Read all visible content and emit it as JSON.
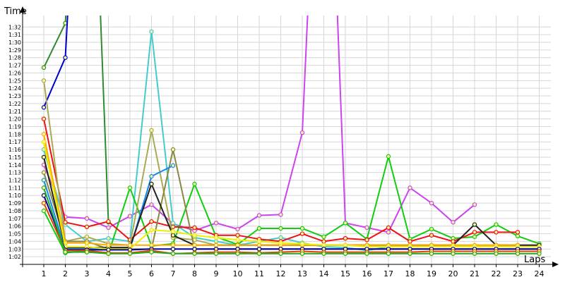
{
  "chart_data": {
    "type": "line",
    "title": "",
    "xlabel": "Laps",
    "ylabel": "Time",
    "x": [
      1,
      2,
      3,
      4,
      5,
      6,
      7,
      8,
      9,
      10,
      11,
      12,
      13,
      14,
      15,
      16,
      17,
      18,
      19,
      20,
      21,
      22,
      23,
      24
    ],
    "ytick_labels": [
      "1:02",
      "1:03",
      "1:04",
      "1:05",
      "1:06",
      "1:07",
      "1:08",
      "1:09",
      "1:10",
      "1:11",
      "1:12",
      "1:13",
      "1:14",
      "1:15",
      "1:16",
      "1:17",
      "1:18",
      "1:19",
      "1:20",
      "1:21",
      "1:22",
      "1:23",
      "1:24",
      "1:25",
      "1:26",
      "1:27",
      "1:28",
      "1:29",
      "1:30",
      "1:31",
      "1:32"
    ],
    "ylim_seconds": [
      61,
      93.5
    ],
    "grid": true,
    "legend": "none",
    "series": [
      {
        "color": "#2e8b2e",
        "values": [
          86.7,
          92.5,
          140,
          66.5,
          null,
          null,
          null,
          null,
          null,
          null,
          null,
          null,
          null,
          null,
          null,
          null,
          null,
          null,
          null,
          null,
          null,
          null,
          null,
          null
        ]
      },
      {
        "color": "#0000cc",
        "values": [
          81.5,
          88,
          140,
          null,
          null,
          null,
          null,
          null,
          null,
          null,
          null,
          null,
          null,
          null,
          null,
          null,
          null,
          null,
          null,
          null,
          null,
          null,
          null,
          null
        ]
      },
      {
        "color": "#cc44ee",
        "values": [
          74,
          67.2,
          67,
          65.8,
          67.3,
          68.8,
          66.3,
          65.4,
          66.4,
          65.6,
          67.4,
          67.5,
          78.2,
          140,
          66.4,
          65.8,
          65.2,
          71,
          69,
          66.5,
          68.8,
          null,
          null,
          null
        ]
      },
      {
        "color": "#44cccc",
        "values": [
          76,
          66.2,
          64,
          64.4,
          64,
          91.4,
          66.4,
          64.5,
          64,
          63.5,
          64,
          64.5,
          63.8,
          63.3,
          63.2,
          62.8,
          63.3,
          63.3,
          63.3,
          63.3,
          63.3,
          63.3,
          63.3,
          null
        ]
      },
      {
        "color": "#11cc11",
        "values": [
          68,
          62.5,
          62.8,
          62.4,
          71,
          63.4,
          63.7,
          71.5,
          64.6,
          63.6,
          65.7,
          65.7,
          65.7,
          64.6,
          66.4,
          64.3,
          75.1,
          64.3,
          65.6,
          64.4,
          64.6,
          66.2,
          64.7,
          63.7
        ]
      },
      {
        "color": "#ee1111",
        "values": [
          80,
          66.5,
          65.9,
          66.6,
          64.2,
          66.6,
          65.9,
          65.8,
          64.8,
          64.8,
          64.3,
          64,
          65,
          64,
          64.4,
          64.2,
          65.8,
          64,
          64.8,
          64,
          65.2,
          65.2,
          65.2,
          null
        ]
      },
      {
        "color": "#aaaa55",
        "values": [
          85,
          64,
          64.6,
          63.7,
          63.5,
          78.5,
          64.5,
          64.2,
          63.5,
          63.5,
          63.5,
          63.5,
          63.5,
          63.5,
          63.5,
          63.5,
          63.5,
          63.5,
          63.5,
          63.5,
          63.5,
          63.5,
          63.5,
          63.5
        ]
      },
      {
        "color": "#888844",
        "values": [
          73,
          64,
          64,
          63,
          63,
          63,
          76,
          63,
          63,
          63,
          63,
          63,
          63,
          63,
          63,
          63,
          63,
          63,
          63,
          63,
          63,
          63,
          63,
          63
        ]
      },
      {
        "color": "#1188ee",
        "values": [
          72,
          63,
          63,
          63,
          63,
          72.5,
          73.9,
          null,
          null,
          null,
          null,
          null,
          null,
          null,
          null,
          null,
          null,
          null,
          null,
          null,
          null,
          null,
          null,
          null
        ]
      },
      {
        "color": "#222222",
        "values": [
          75,
          63.2,
          63.2,
          63.2,
          63.2,
          71.5,
          64.8,
          63.5,
          63.5,
          63.5,
          63.5,
          63.5,
          63.5,
          63.5,
          63.5,
          63.5,
          63.5,
          63.5,
          63.5,
          63.5,
          66.2,
          63.5,
          63.5,
          63.5
        ]
      },
      {
        "color": "#ffaa00",
        "values": [
          78,
          63.8,
          63.8,
          63.5,
          63.5,
          63.5,
          63.5,
          63.5,
          63.5,
          63.5,
          63.5,
          63.5,
          63.5,
          63.5,
          63.5,
          63.5,
          63.5,
          63.5,
          63.5,
          63.5,
          63.5,
          63.5,
          63.5,
          null
        ]
      },
      {
        "color": "#eeee00",
        "values": [
          77,
          63.3,
          63.3,
          63,
          63,
          65.5,
          65.3,
          64.8,
          64.5,
          64.2,
          64,
          63.8,
          63.7,
          63.5,
          63.5,
          63.3,
          63.3,
          63.3,
          63.3,
          63.3,
          63.3,
          63.3,
          63.3,
          63.3
        ]
      },
      {
        "color": "#000099",
        "values": [
          70,
          62.9,
          62.9,
          62.9,
          62.9,
          63,
          63,
          63,
          63,
          63,
          63,
          63,
          63,
          63,
          63,
          63,
          63,
          63,
          63,
          63,
          63,
          63,
          63,
          63
        ]
      },
      {
        "color": "#dd4400",
        "values": [
          69,
          62.8,
          62.8,
          62.5,
          62.5,
          62.8,
          62.4,
          62.5,
          62.6,
          62.6,
          62.5,
          62.6,
          62.7,
          62.6,
          62.6,
          62.6,
          62.6,
          62.6,
          62.7,
          62.7,
          62.7,
          62.7,
          62.7,
          62.7
        ]
      },
      {
        "color": "#22aa22",
        "values": [
          71,
          62.6,
          62.6,
          62.4,
          62.4,
          62.6,
          62.4,
          62.4,
          62.4,
          62.4,
          62.4,
          62.4,
          62.4,
          62.4,
          62.4,
          62.4,
          62.4,
          62.4,
          62.4,
          62.4,
          62.4,
          62.4,
          62.4,
          62.4
        ]
      }
    ]
  }
}
